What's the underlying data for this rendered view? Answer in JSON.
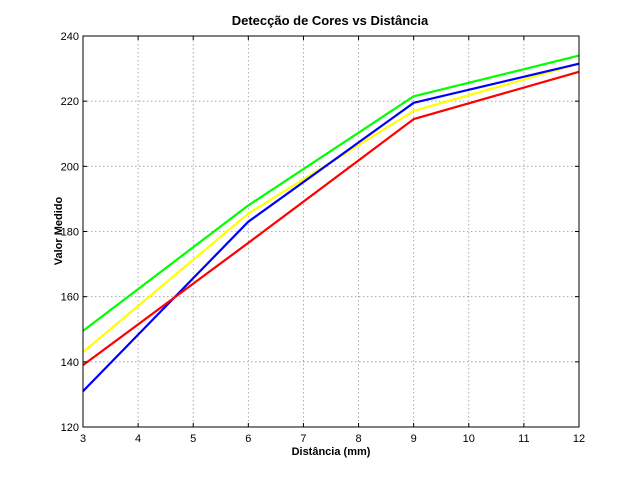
{
  "chart_data": {
    "type": "line",
    "title": "Detecção de Cores vs Distância",
    "xlabel": "Distância (mm)",
    "ylabel": "Valor Medido",
    "xlim": [
      3,
      12
    ],
    "ylim": [
      120,
      240
    ],
    "xticks": [
      3,
      4,
      5,
      6,
      7,
      8,
      9,
      10,
      11,
      12
    ],
    "yticks": [
      120,
      140,
      160,
      180,
      200,
      220,
      240
    ],
    "grid": true,
    "x": [
      3,
      6,
      9,
      12
    ],
    "series": [
      {
        "color": "#ffff00",
        "values": [
          143,
          185.5,
          217,
          231.5
        ]
      },
      {
        "color": "#00ff00",
        "values": [
          149.5,
          188,
          221.5,
          234
        ]
      },
      {
        "color": "#0000ff",
        "values": [
          131,
          183,
          219.5,
          231.5
        ]
      },
      {
        "color": "#ff0000",
        "values": [
          139,
          176.5,
          214.5,
          229
        ]
      }
    ]
  }
}
